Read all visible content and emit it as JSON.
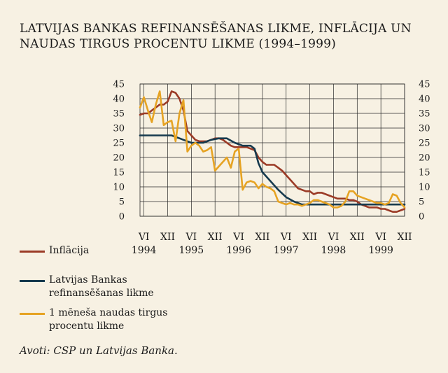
{
  "title_lines": [
    "LATVIJAS BANKAS REFINANSĒŠANAS LIKME, INFLĀCIJA UN",
    "NAUDAS TIRGUS PROCENTU LIKME (1994–1999)"
  ],
  "source": "Avoti: CSP un Latvijas Banka.",
  "legend": [
    {
      "lines": [
        "Inflācija"
      ],
      "color": "#9b3a26"
    },
    {
      "lines": [
        "Latvijas Bankas",
        "refinansēšanas likme"
      ],
      "color": "#163a4e"
    },
    {
      "lines": [
        "1 mēneša naudas tirgus",
        "procentu likme"
      ],
      "color": "#e6a323"
    }
  ],
  "chart_data": {
    "type": "line",
    "x_months_range": [
      "1994-05",
      "1999-12"
    ],
    "ylim": [
      0,
      45
    ],
    "y_ticks": [
      0,
      5,
      10,
      15,
      20,
      25,
      30,
      35,
      40,
      45
    ],
    "x_tick_labels": [
      {
        "date": "1994-06",
        "label": "VI"
      },
      {
        "date": "1994-12",
        "label": "XII"
      },
      {
        "date": "1995-06",
        "label": "VI"
      },
      {
        "date": "1995-12",
        "label": "XII"
      },
      {
        "date": "1996-06",
        "label": "VI"
      },
      {
        "date": "1996-12",
        "label": "XII"
      },
      {
        "date": "1997-06",
        "label": "VI"
      },
      {
        "date": "1997-12",
        "label": "XII"
      },
      {
        "date": "1998-06",
        "label": "VI"
      },
      {
        "date": "1998-12",
        "label": "XII"
      },
      {
        "date": "1999-06",
        "label": "VI"
      },
      {
        "date": "1999-12",
        "label": "XII"
      }
    ],
    "year_labels": [
      {
        "date": "1994-06",
        "label": "1994"
      },
      {
        "date": "1995-06",
        "label": "1995"
      },
      {
        "date": "1996-06",
        "label": "1996"
      },
      {
        "date": "1997-06",
        "label": "1997"
      },
      {
        "date": "1998-06",
        "label": "1998"
      },
      {
        "date": "1999-06",
        "label": "1999"
      }
    ],
    "grid": true,
    "series": [
      {
        "name": "Inflācija",
        "color": "#9b3a26",
        "points": [
          [
            "1994-05",
            34.5
          ],
          [
            "1994-06",
            35
          ],
          [
            "1994-07",
            35
          ],
          [
            "1994-08",
            36
          ],
          [
            "1994-09",
            37
          ],
          [
            "1994-10",
            38
          ],
          [
            "1994-11",
            38
          ],
          [
            "1994-12",
            39
          ],
          [
            "1995-01",
            42.5
          ],
          [
            "1995-02",
            42
          ],
          [
            "1995-03",
            40
          ],
          [
            "1995-04",
            36
          ],
          [
            "1995-05",
            29
          ],
          [
            "1995-06",
            27.5
          ],
          [
            "1995-07",
            26
          ],
          [
            "1995-08",
            25.5
          ],
          [
            "1995-09",
            25.5
          ],
          [
            "1995-10",
            25.5
          ],
          [
            "1995-11",
            26
          ],
          [
            "1995-12",
            26.5
          ],
          [
            "1996-01",
            26.5
          ],
          [
            "1996-02",
            26
          ],
          [
            "1996-03",
            25
          ],
          [
            "1996-04",
            24
          ],
          [
            "1996-05",
            23.5
          ],
          [
            "1996-06",
            23.5
          ],
          [
            "1996-07",
            23.5
          ],
          [
            "1996-08",
            23.5
          ],
          [
            "1996-09",
            23
          ],
          [
            "1996-10",
            22.5
          ],
          [
            "1996-11",
            20
          ],
          [
            "1996-12",
            18.5
          ],
          [
            "1997-01",
            17.5
          ],
          [
            "1997-02",
            17.5
          ],
          [
            "1997-03",
            17.5
          ],
          [
            "1997-04",
            16.5
          ],
          [
            "1997-05",
            15.5
          ],
          [
            "1997-06",
            14
          ],
          [
            "1997-07",
            12.5
          ],
          [
            "1997-08",
            11
          ],
          [
            "1997-09",
            9.5
          ],
          [
            "1997-10",
            9
          ],
          [
            "1997-11",
            8.5
          ],
          [
            "1997-12",
            8.5
          ],
          [
            "1998-01",
            7.5
          ],
          [
            "1998-02",
            8
          ],
          [
            "1998-03",
            8
          ],
          [
            "1998-04",
            7.5
          ],
          [
            "1998-05",
            7
          ],
          [
            "1998-06",
            6.5
          ],
          [
            "1998-07",
            6
          ],
          [
            "1998-08",
            6
          ],
          [
            "1998-09",
            6
          ],
          [
            "1998-10",
            5.5
          ],
          [
            "1998-11",
            5.5
          ],
          [
            "1998-12",
            5
          ],
          [
            "1999-01",
            4
          ],
          [
            "1999-02",
            3.5
          ],
          [
            "1999-03",
            3
          ],
          [
            "1999-04",
            3
          ],
          [
            "1999-05",
            3
          ],
          [
            "1999-06",
            2.5
          ],
          [
            "1999-07",
            2.5
          ],
          [
            "1999-08",
            2
          ],
          [
            "1999-09",
            1.5
          ],
          [
            "1999-10",
            1.5
          ],
          [
            "1999-11",
            2
          ],
          [
            "1999-12",
            2.5
          ]
        ]
      },
      {
        "name": "Latvijas Bankas refinansēšanas likme",
        "color": "#163a4e",
        "points": [
          [
            "1994-05",
            27.5
          ],
          [
            "1995-01",
            27.5
          ],
          [
            "1995-02",
            27
          ],
          [
            "1995-04",
            26
          ],
          [
            "1995-06",
            25
          ],
          [
            "1995-09",
            25
          ],
          [
            "1995-11",
            26
          ],
          [
            "1996-01",
            26.5
          ],
          [
            "1996-03",
            26.5
          ],
          [
            "1996-05",
            25
          ],
          [
            "1996-07",
            24
          ],
          [
            "1996-09",
            24
          ],
          [
            "1996-10",
            23
          ],
          [
            "1996-11",
            18
          ],
          [
            "1996-12",
            15
          ],
          [
            "1997-02",
            12
          ],
          [
            "1997-04",
            9
          ],
          [
            "1997-06",
            6.5
          ],
          [
            "1997-08",
            5
          ],
          [
            "1997-10",
            4
          ],
          [
            "1999-12",
            4
          ]
        ]
      },
      {
        "name": "1 mēneša naudas tirgus procentu likme",
        "color": "#e6a323",
        "points": [
          [
            "1994-05",
            37
          ],
          [
            "1994-06",
            40.5
          ],
          [
            "1994-07",
            36
          ],
          [
            "1994-08",
            32
          ],
          [
            "1994-09",
            38
          ],
          [
            "1994-10",
            42.5
          ],
          [
            "1994-11",
            31
          ],
          [
            "1994-12",
            32
          ],
          [
            "1995-01",
            32.5
          ],
          [
            "1995-02",
            25.5
          ],
          [
            "1995-03",
            35
          ],
          [
            "1995-04",
            39.5
          ],
          [
            "1995-05",
            22
          ],
          [
            "1995-06",
            24
          ],
          [
            "1995-07",
            25
          ],
          [
            "1995-08",
            24
          ],
          [
            "1995-09",
            22
          ],
          [
            "1995-10",
            22.5
          ],
          [
            "1995-11",
            23.5
          ],
          [
            "1995-12",
            15.5
          ],
          [
            "1996-01",
            17
          ],
          [
            "1996-02",
            18.5
          ],
          [
            "1996-03",
            20
          ],
          [
            "1996-04",
            16.5
          ],
          [
            "1996-05",
            22
          ],
          [
            "1996-06",
            23
          ],
          [
            "1996-07",
            9
          ],
          [
            "1996-08",
            11.5
          ],
          [
            "1996-09",
            12
          ],
          [
            "1996-10",
            11.5
          ],
          [
            "1996-11",
            9.5
          ],
          [
            "1996-12",
            11
          ],
          [
            "1997-01",
            10
          ],
          [
            "1997-02",
            9.5
          ],
          [
            "1997-03",
            8.5
          ],
          [
            "1997-04",
            5
          ],
          [
            "1997-05",
            4.5
          ],
          [
            "1997-06",
            4
          ],
          [
            "1997-07",
            4.5
          ],
          [
            "1997-08",
            4
          ],
          [
            "1997-09",
            4
          ],
          [
            "1997-10",
            3.5
          ],
          [
            "1997-11",
            4
          ],
          [
            "1997-12",
            4.5
          ],
          [
            "1998-01",
            5.5
          ],
          [
            "1998-02",
            5.5
          ],
          [
            "1998-03",
            5
          ],
          [
            "1998-04",
            4.5
          ],
          [
            "1998-05",
            4
          ],
          [
            "1998-06",
            3
          ],
          [
            "1998-07",
            3
          ],
          [
            "1998-08",
            3.5
          ],
          [
            "1998-09",
            5
          ],
          [
            "1998-10",
            8.5
          ],
          [
            "1998-11",
            8.5
          ],
          [
            "1998-12",
            7
          ],
          [
            "1999-01",
            6.5
          ],
          [
            "1999-02",
            6
          ],
          [
            "1999-03",
            5.5
          ],
          [
            "1999-04",
            5
          ],
          [
            "1999-05",
            4.5
          ],
          [
            "1999-06",
            4.5
          ],
          [
            "1999-07",
            4
          ],
          [
            "1999-08",
            4.5
          ],
          [
            "1999-09",
            7.5
          ],
          [
            "1999-10",
            7
          ],
          [
            "1999-11",
            4.5
          ],
          [
            "1999-12",
            3
          ]
        ]
      }
    ]
  }
}
